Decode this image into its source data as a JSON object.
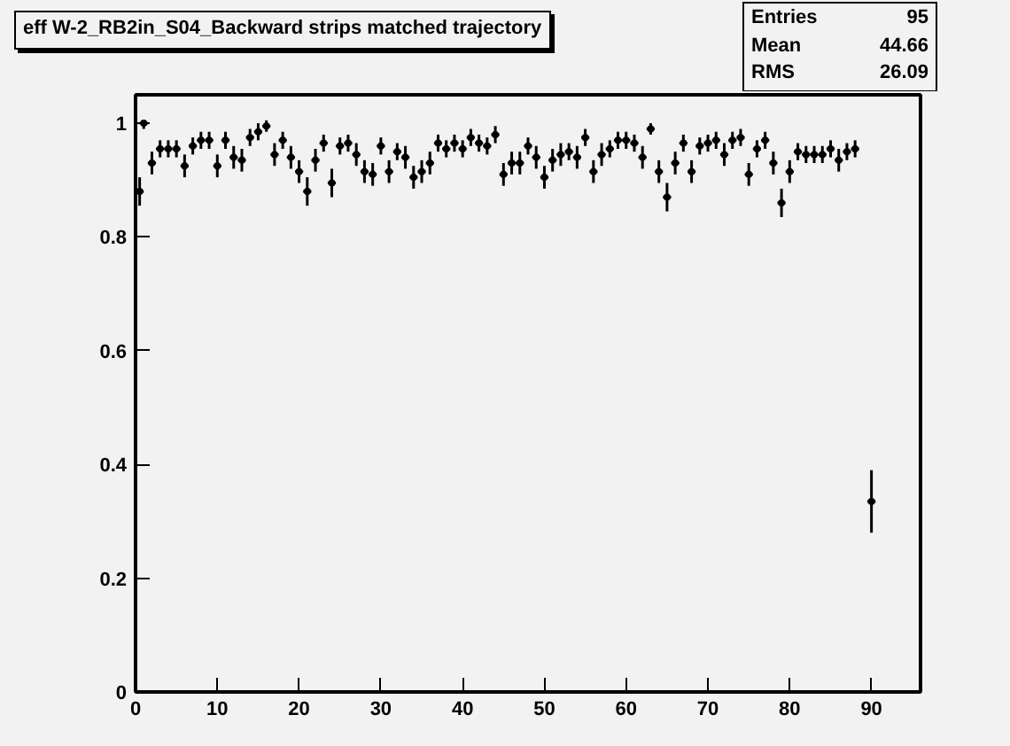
{
  "chart_data": {
    "type": "scatter",
    "title": "eff W-2_RB2in_S04_Backward strips matched trajectory",
    "x": [
      0.5,
      1,
      2,
      3,
      4,
      5,
      6,
      7,
      8,
      9,
      10,
      11,
      12,
      13,
      14,
      15,
      16,
      17,
      18,
      19,
      20,
      21,
      22,
      23,
      24,
      25,
      26,
      27,
      28,
      29,
      30,
      31,
      32,
      33,
      34,
      35,
      36,
      37,
      38,
      39,
      40,
      41,
      42,
      43,
      44,
      45,
      46,
      47,
      48,
      49,
      50,
      51,
      52,
      53,
      54,
      55,
      56,
      57,
      58,
      59,
      60,
      61,
      62,
      63,
      64,
      65,
      66,
      67,
      68,
      69,
      70,
      71,
      72,
      73,
      74,
      75,
      76,
      77,
      78,
      79,
      80,
      81,
      82,
      83,
      84,
      85,
      86,
      87,
      88,
      90
    ],
    "values": [
      0.88,
      1.0,
      0.93,
      0.955,
      0.955,
      0.955,
      0.925,
      0.96,
      0.97,
      0.97,
      0.925,
      0.97,
      0.94,
      0.935,
      0.975,
      0.985,
      0.995,
      0.945,
      0.97,
      0.94,
      0.915,
      0.88,
      0.935,
      0.965,
      0.895,
      0.96,
      0.965,
      0.945,
      0.915,
      0.91,
      0.96,
      0.915,
      0.95,
      0.94,
      0.905,
      0.915,
      0.93,
      0.965,
      0.955,
      0.965,
      0.955,
      0.975,
      0.965,
      0.96,
      0.98,
      0.91,
      0.93,
      0.93,
      0.96,
      0.94,
      0.905,
      0.935,
      0.945,
      0.95,
      0.94,
      0.975,
      0.915,
      0.945,
      0.955,
      0.97,
      0.97,
      0.965,
      0.94,
      0.99,
      0.915,
      0.87,
      0.93,
      0.965,
      0.915,
      0.96,
      0.965,
      0.97,
      0.945,
      0.97,
      0.975,
      0.91,
      0.955,
      0.97,
      0.93,
      0.86,
      0.915,
      0.95,
      0.945,
      0.945,
      0.945,
      0.955,
      0.935,
      0.95,
      0.955,
      0.335
    ],
    "errors": [
      0.025,
      [
        0.99,
        1.0
      ],
      0.02,
      0.015,
      0.015,
      0.015,
      0.02,
      0.015,
      0.015,
      0.015,
      0.02,
      0.015,
      0.02,
      0.02,
      0.015,
      0.015,
      0.01,
      0.02,
      0.015,
      0.02,
      0.02,
      0.025,
      0.02,
      0.015,
      0.025,
      0.015,
      0.015,
      0.02,
      0.02,
      0.02,
      0.015,
      0.02,
      0.015,
      0.02,
      0.02,
      0.02,
      0.02,
      0.015,
      0.015,
      0.015,
      0.015,
      0.015,
      0.015,
      0.015,
      0.015,
      0.02,
      0.02,
      0.02,
      0.015,
      0.02,
      0.02,
      0.02,
      0.02,
      0.015,
      0.02,
      0.015,
      0.02,
      0.02,
      0.015,
      0.015,
      0.015,
      0.015,
      0.02,
      0.01,
      0.02,
      0.025,
      0.02,
      0.015,
      0.02,
      0.015,
      0.015,
      0.015,
      0.02,
      0.015,
      0.015,
      0.02,
      0.015,
      0.015,
      0.02,
      0.025,
      0.02,
      0.015,
      0.015,
      0.015,
      0.015,
      0.015,
      0.02,
      0.015,
      0.015,
      0.055
    ],
    "xerrors": [
      0.5,
      0.5,
      0.5,
      0.5,
      0.5,
      0.5,
      0.5,
      0.5,
      0.5,
      0.5,
      0.5,
      0.5,
      0.5,
      0.5,
      0.5,
      0.5,
      0.5,
      0.5,
      0.5,
      0.5,
      0.5,
      0.5,
      0.5,
      0.5,
      0.5,
      0.5,
      0.5,
      0.5,
      0.5,
      0.5,
      0.5,
      0.5,
      0.5,
      0.5,
      0.5,
      0.5,
      0.5,
      0.5,
      0.5,
      0.5,
      0.5,
      0.5,
      0.5,
      0.5,
      0.5,
      0.5,
      0.5,
      0.5,
      0.5,
      0.5,
      0.5,
      0.5,
      0.5,
      0.5,
      0.5,
      0.5,
      0.5,
      0.5,
      0.5,
      0.5,
      0.5,
      0.5,
      0.5,
      0.5,
      0.5,
      0.5,
      0.5,
      0.5,
      0.5,
      0.5,
      0.5,
      0.5,
      0.5,
      0.5,
      0.5,
      0.5,
      0.5,
      0.5,
      0.5,
      0.5,
      0.5,
      0.5,
      0.5,
      0.5,
      0.5,
      0.5,
      0.5,
      0.5,
      0.5,
      0.5
    ],
    "color": "#000000",
    "xlim": [
      0,
      96
    ],
    "ylim": [
      0,
      1.05
    ],
    "xticks": [
      0,
      10,
      20,
      30,
      40,
      50,
      60,
      70,
      80,
      90
    ],
    "yticks": [
      0,
      {
        "value": 0.2,
        "label": "0.2"
      },
      {
        "value": 0.4,
        "label": "0.4"
      },
      {
        "value": 0.6,
        "label": "0.6"
      },
      {
        "value": 0.8,
        "label": "0.8"
      },
      1
    ],
    "marker": "circle",
    "grid": false,
    "annotations": [
      "Entries 95",
      "Mean 44.66",
      "RMS 26.09"
    ]
  }
}
